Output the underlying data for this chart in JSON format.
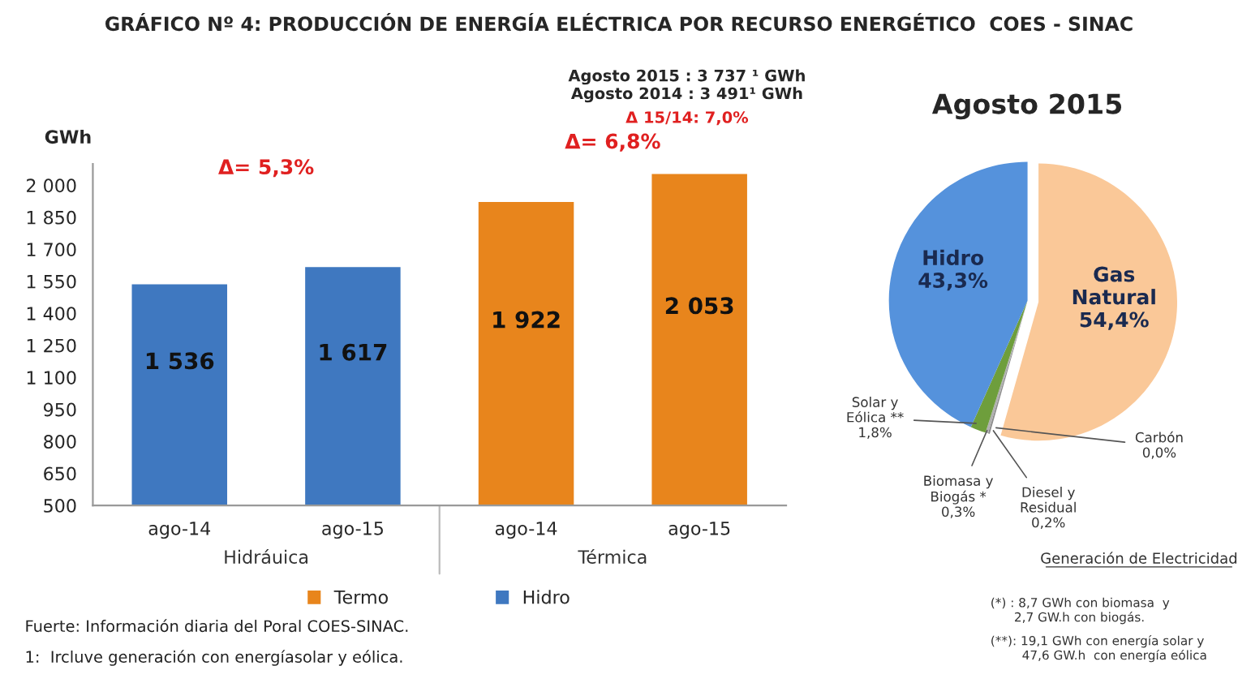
{
  "chart_data": [
    {
      "type": "bar",
      "title": "GRÁFICO Nº 4: PRODUCCIÓN DE ENERGÍA ELÉCTRICA POR RECURSO ENERGÉTICO  COES - SINAC",
      "subtitle": "Agosto 2015 : 3 737 ¹ GWh\nAgosto 2014 : 3 491¹ GWh",
      "ylabel": "GWh",
      "categories": [
        "ago-14",
        "ago-15",
        "ago-14",
        "ago-15"
      ],
      "series": [
        {
          "name": "Termo",
          "color": "#e8851c",
          "values": [
            null,
            null,
            1922,
            2053
          ],
          "value_labels": [
            null,
            null,
            "1 922",
            "2 053"
          ]
        },
        {
          "name": "Hidro",
          "color": "#3f78c0",
          "values": [
            1536,
            1617,
            null,
            null
          ],
          "value_labels": [
            "1 536",
            "1 617",
            null,
            null
          ]
        }
      ],
      "ylim": [
        500,
        2100
      ],
      "yticks": [
        {
          "value": 500,
          "label": "500"
        },
        {
          "value": 650,
          "label": "650"
        },
        {
          "value": 800,
          "label": "800"
        },
        {
          "value": 950,
          "label": "950"
        },
        {
          "value": 1100,
          "label": "1 100"
        },
        {
          "value": 1250,
          "label": "1 250"
        },
        {
          "value": 1400,
          "label": "1 400"
        },
        {
          "value": 1550,
          "label": "1 550"
        },
        {
          "value": 1700,
          "label": "1 700"
        },
        {
          "value": 1850,
          "label": "1 850"
        },
        {
          "value": 2000,
          "label": "2 000"
        }
      ],
      "annotations": [
        "Δ 15/14: 7,0%",
        "Δ= 5,3%",
        "Δ= 6,8%",
        "Hidráuica",
        "Térmica",
        "Fuerte: Información diaria del Poral COES-SINAC.",
        "1:  Ircluve generación con energíasolar y eólica."
      ],
      "legend": "bottom",
      "grid": false
    },
    {
      "type": "pie",
      "title": "Agosto 2015",
      "categories": [
        "Gas\nNatural",
        "Carbón",
        "Diesel y\nResidual",
        "Biomasa y\nBiogás *",
        "Solar y\nEólica **",
        "Hidro"
      ],
      "values": [
        54.4,
        0.0,
        0.2,
        0.3,
        1.8,
        43.3
      ],
      "value_labels": [
        "54,4%",
        "0,0%",
        "0,2%",
        "0,3%",
        "1,8%",
        "43,3%"
      ],
      "colors": [
        "#fac898",
        "#404040",
        "#8c8c8c",
        "#b0b0b0",
        "#6e9e3c",
        "#5592dc"
      ],
      "annotations": [
        "Generación de Electricidad",
        "(*) : 8,7 GWh con biomasa  y\n      2,7 GW.h con biogás.",
        "(**): 19,1 GWh con energía solar y\n        47,6 GW.h  con energía eólica"
      ]
    }
  ]
}
